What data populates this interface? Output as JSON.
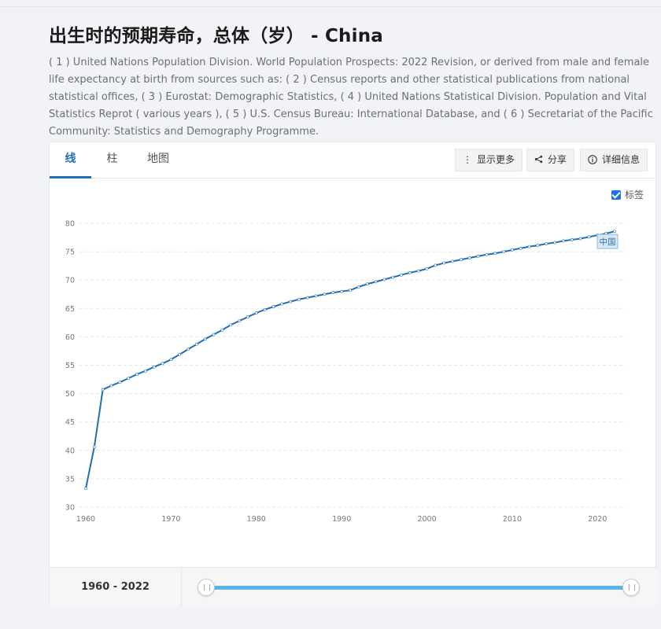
{
  "page": {
    "title": "出生时的预期寿命，总体（岁） - China",
    "source": "( 1 ) United Nations Population Division. World Population Prospects: 2022 Revision, or derived from male and female life expectancy at birth from sources such as: ( 2 ) Census reports and other statistical publications from national statistical offices, ( 3 ) Eurostat: Demographic Statistics, ( 4 ) United Nations Statistical Division. Population and Vital Statistics Reprot ( various years ), ( 5 ) U.S. Census Bureau: International Database, and ( 6 ) Secretariat of the Pacific Community: Statistics and Demography Programme."
  },
  "tabs": [
    {
      "label": "线",
      "active": true
    },
    {
      "label": "柱",
      "active": false
    },
    {
      "label": "地图",
      "active": false
    }
  ],
  "toolbar": {
    "more_label": "显示更多",
    "more_icon": "vertical-dots-icon",
    "share_label": "分享",
    "share_icon": "share-icon",
    "details_label": "详细信息",
    "details_icon": "info-icon"
  },
  "labels_checkbox": {
    "label": "标签",
    "checked": true
  },
  "footer": {
    "range_label": "1960 - 2022",
    "range_start": 1960,
    "range_end": 2022
  },
  "colors": {
    "line": "#1f6fb2",
    "accent": "#1a73e8",
    "slider": "#5cb3e6"
  },
  "chart_data": {
    "type": "line",
    "xlim": [
      1960,
      2022
    ],
    "ylim": [
      30,
      80
    ],
    "x_ticks": [
      1960,
      1970,
      1980,
      1990,
      2000,
      2010,
      2020
    ],
    "y_ticks": [
      30,
      35,
      40,
      45,
      50,
      55,
      60,
      65,
      70,
      75,
      80
    ],
    "grid": true,
    "series": [
      {
        "name": "中国",
        "x": [
          1960,
          1961,
          1962,
          1963,
          1964,
          1965,
          1966,
          1967,
          1968,
          1969,
          1970,
          1971,
          1972,
          1973,
          1974,
          1975,
          1976,
          1977,
          1978,
          1979,
          1980,
          1981,
          1982,
          1983,
          1984,
          1985,
          1986,
          1987,
          1988,
          1989,
          1990,
          1991,
          1992,
          1993,
          1994,
          1995,
          1996,
          1997,
          1998,
          1999,
          2000,
          2001,
          2002,
          2003,
          2004,
          2005,
          2006,
          2007,
          2008,
          2009,
          2010,
          2011,
          2012,
          2013,
          2014,
          2015,
          2016,
          2017,
          2018,
          2019,
          2020,
          2021,
          2022
        ],
        "values": [
          33.3,
          40.6,
          50.7,
          51.4,
          52.0,
          52.7,
          53.4,
          54.0,
          54.7,
          55.3,
          56.0,
          56.9,
          57.8,
          58.7,
          59.6,
          60.4,
          61.2,
          62.1,
          62.8,
          63.5,
          64.2,
          64.8,
          65.3,
          65.8,
          66.2,
          66.6,
          66.9,
          67.2,
          67.5,
          67.8,
          68.0,
          68.2,
          68.8,
          69.3,
          69.7,
          70.1,
          70.5,
          70.9,
          71.3,
          71.6,
          72.0,
          72.6,
          73.0,
          73.3,
          73.6,
          73.9,
          74.2,
          74.5,
          74.7,
          75.0,
          75.3,
          75.6,
          75.9,
          76.1,
          76.4,
          76.6,
          76.9,
          77.1,
          77.3,
          77.6,
          77.9,
          78.2,
          78.6
        ]
      }
    ]
  }
}
